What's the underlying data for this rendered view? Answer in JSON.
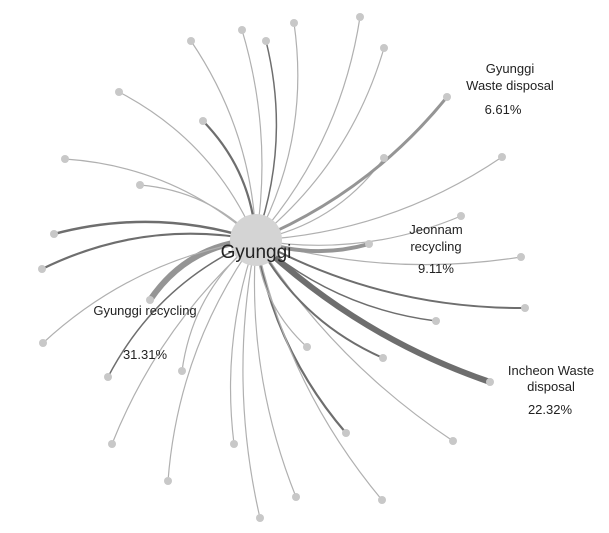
{
  "hub": {
    "label": "Gyunggi"
  },
  "colors": {
    "background": "#ffffff",
    "hub_fill": "#d4d4d4",
    "node_fill": "#c8c8c8",
    "link_light": "#b0b0b0",
    "link_dark": "#6e6e6e",
    "link_highlight": "#959595",
    "text": "#222222"
  },
  "callouts": [
    {
      "id": "gyunggi-waste-disposal",
      "lines": [
        "Gyunggi",
        "Waste disposal"
      ],
      "value": "6.61%"
    },
    {
      "id": "jeonnam-recycling",
      "lines": [
        "Jeonnam",
        "recycling"
      ],
      "value": "9.11%"
    },
    {
      "id": "gyunggi-recycling",
      "lines": [
        "Gyunggi recycling"
      ],
      "value": "31.31%"
    },
    {
      "id": "incheon-waste-disposal",
      "lines": [
        "Incheon Waste",
        "disposal"
      ],
      "value": "22.32%"
    }
  ]
}
